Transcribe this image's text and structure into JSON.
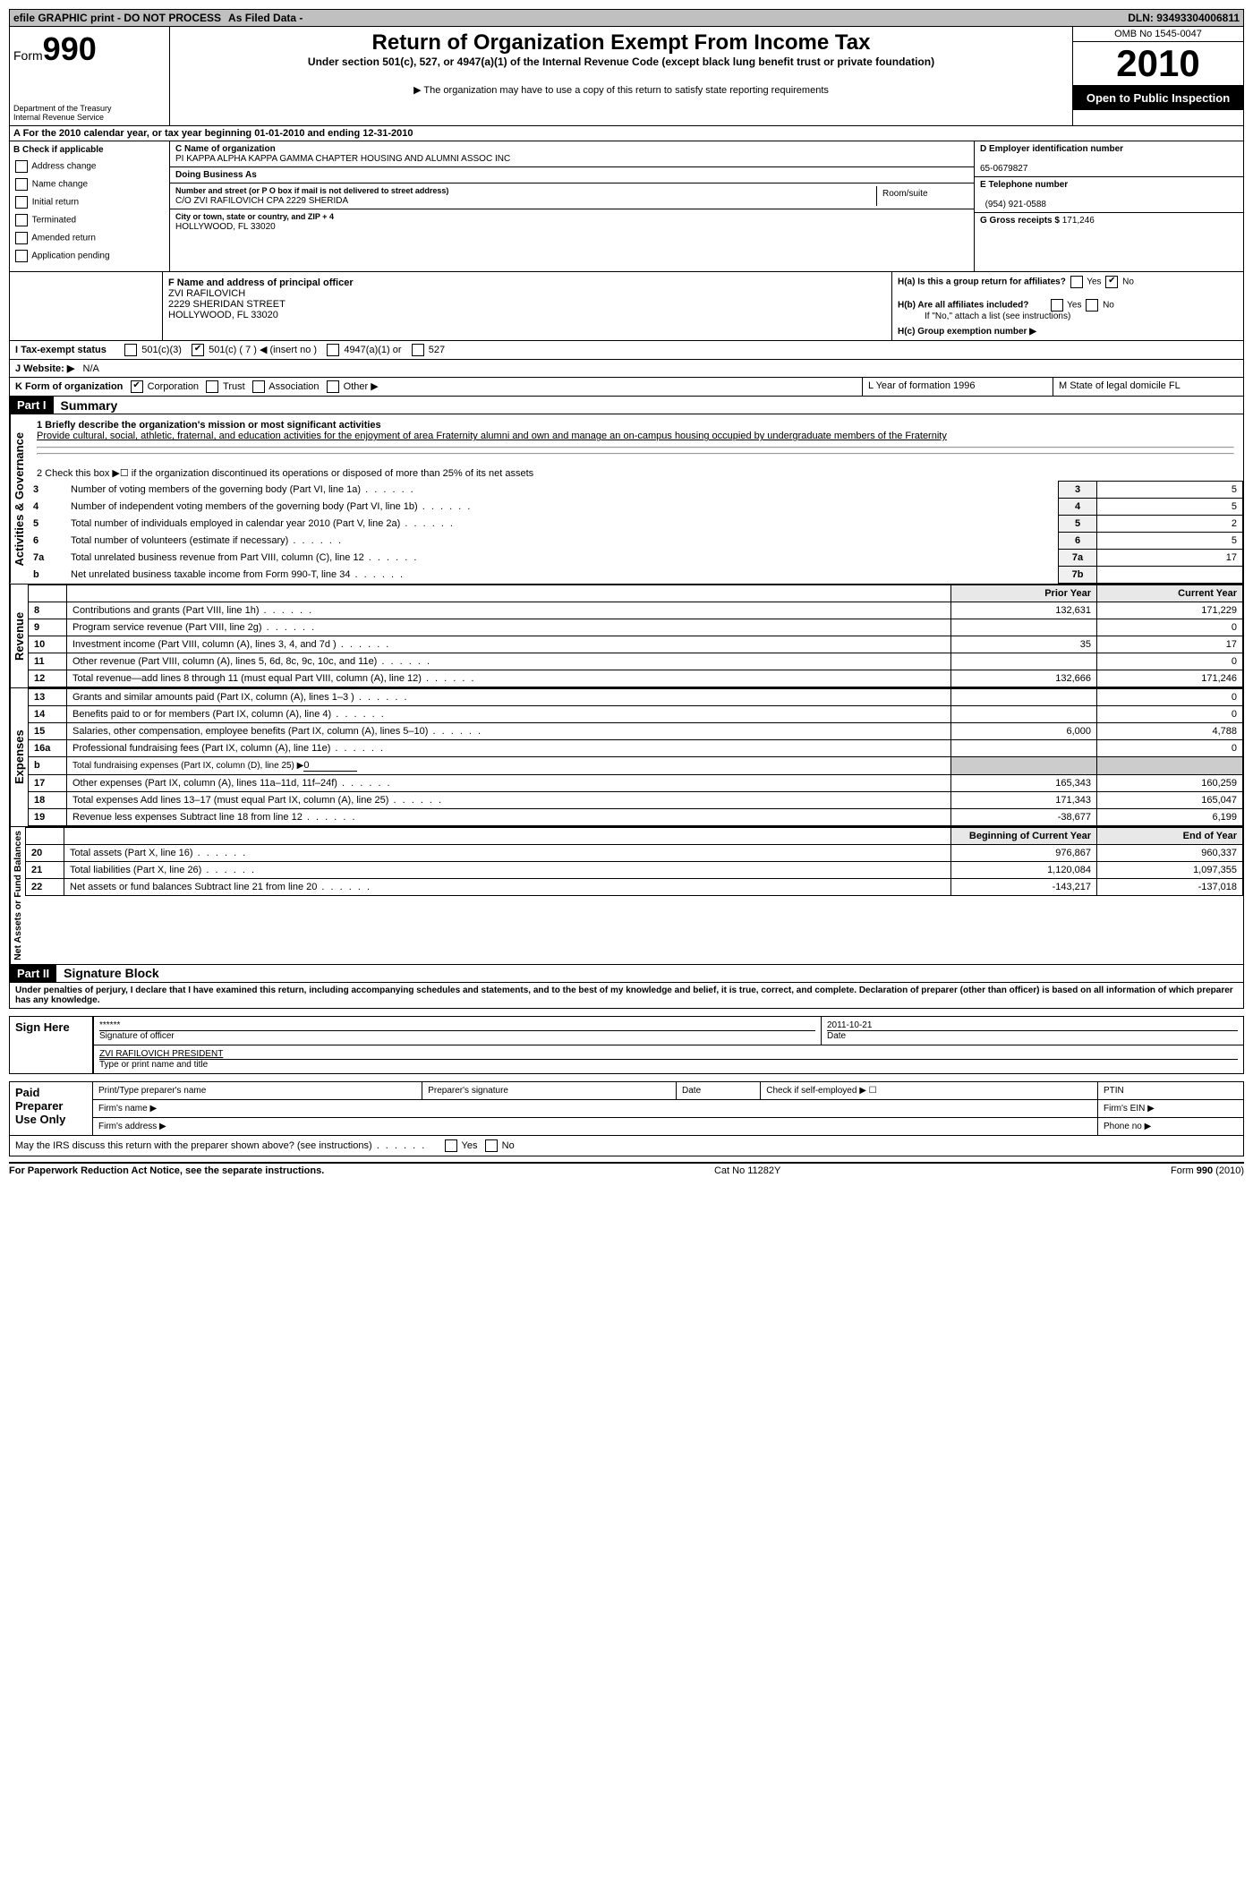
{
  "topbar": {
    "left": "efile GRAPHIC print - DO NOT PROCESS",
    "mid": "As Filed Data -",
    "right": "DLN: 93493304006811"
  },
  "header": {
    "form_label": "Form",
    "form_number": "990",
    "dept1": "Department of the Treasury",
    "dept2": "Internal Revenue Service",
    "title": "Return of Organization Exempt From Income Tax",
    "subtitle": "Under section 501(c), 527, or 4947(a)(1) of the Internal Revenue Code (except black lung benefit trust or private foundation)",
    "note": "▶ The organization may have to use a copy of this return to satisfy state reporting requirements",
    "omb": "OMB No 1545-0047",
    "year": "2010",
    "open": "Open to Public Inspection"
  },
  "sectionA": "A  For the 2010 calendar year, or tax year beginning 01-01-2010    and ending 12-31-2010",
  "B": {
    "label": "B Check if applicable",
    "items": [
      "Address change",
      "Name change",
      "Initial return",
      "Terminated",
      "Amended return",
      "Application pending"
    ]
  },
  "C": {
    "name_label": "C Name of organization",
    "name": "PI KAPPA ALPHA KAPPA GAMMA CHAPTER HOUSING AND ALUMNI ASSOC INC",
    "dba_label": "Doing Business As",
    "street_label": "Number and street (or P O  box if mail is not delivered to street address)",
    "street": "C/O ZVI RAFILOVICH CPA 2229 SHERIDA",
    "room_label": "Room/suite",
    "city_label": "City or town, state or country, and ZIP + 4",
    "city": "HOLLYWOOD, FL  33020"
  },
  "D": {
    "label": "D Employer identification number",
    "value": "65-0679827"
  },
  "E": {
    "label": "E Telephone number",
    "value": "(954) 921-0588"
  },
  "G": {
    "label": "G Gross receipts $",
    "value": "171,246"
  },
  "F": {
    "label": "F   Name and address of principal officer",
    "name": "ZVI RAFILOVICH",
    "street": "2229 SHERIDAN STREET",
    "city": "HOLLYWOOD, FL  33020"
  },
  "H": {
    "a": "H(a)  Is this a group return for affiliates?",
    "a_no_checked": "✔",
    "b": "H(b)  Are all affiliates included?",
    "b_note": "If \"No,\" attach a list  (see instructions)",
    "c": "H(c)   Group exemption number ▶"
  },
  "I": {
    "label": "I    Tax-exempt status",
    "opts": [
      "501(c)(3)",
      "501(c) ( 7 ) ◀ (insert no )",
      "4947(a)(1) or",
      "527"
    ],
    "checked_idx": 1
  },
  "J": {
    "label": "J   Website: ▶",
    "value": "N/A"
  },
  "K": {
    "label": "K Form of organization",
    "opts": [
      "Corporation",
      "Trust",
      "Association",
      "Other ▶"
    ],
    "checked_idx": 0,
    "L": "L Year of formation  1996",
    "M": "M State of legal domicile  FL"
  },
  "part1": {
    "label": "Part I",
    "title": "Summary"
  },
  "mission": {
    "q": "1   Briefly describe the organization's mission or most significant activities",
    "text": "Provide cultural, social, athletic, fraternal, and education activities for the enjoyment of area Fraternity alumni and own and manage an on-campus housing occupied by undergraduate members of the Fraternity"
  },
  "gov_section": "Activities & Governance",
  "line2": "2   Check this box ▶☐ if the organization discontinued its operations or disposed of more than 25% of its net assets",
  "gov_rows": [
    {
      "n": "3",
      "label": "Number of voting members of the governing body (Part VI, line 1a)",
      "box": "3",
      "val": "5"
    },
    {
      "n": "4",
      "label": "Number of independent voting members of the governing body (Part VI, line 1b)",
      "box": "4",
      "val": "5"
    },
    {
      "n": "5",
      "label": "Total number of individuals employed in calendar year 2010 (Part V, line 2a)",
      "box": "5",
      "val": "2"
    },
    {
      "n": "6",
      "label": "Total number of volunteers (estimate if necessary)",
      "box": "6",
      "val": "5"
    },
    {
      "n": "7a",
      "label": "Total unrelated business revenue from Part VIII, column (C), line 12",
      "box": "7a",
      "val": "17"
    },
    {
      "n": "b",
      "label": "Net unrelated business taxable income from Form 990-T, line 34",
      "box": "7b",
      "val": ""
    }
  ],
  "rev_section": "Revenue",
  "rev_headers": {
    "prior": "Prior Year",
    "current": "Current Year"
  },
  "rev_rows": [
    {
      "n": "8",
      "label": "Contributions and grants (Part VIII, line 1h)",
      "p": "132,631",
      "c": "171,229"
    },
    {
      "n": "9",
      "label": "Program service revenue (Part VIII, line 2g)",
      "p": "",
      "c": "0"
    },
    {
      "n": "10",
      "label": "Investment income (Part VIII, column (A), lines 3, 4, and 7d )",
      "p": "35",
      "c": "17"
    },
    {
      "n": "11",
      "label": "Other revenue (Part VIII, column (A), lines 5, 6d, 8c, 9c, 10c, and 11e)",
      "p": "",
      "c": "0"
    },
    {
      "n": "12",
      "label": "Total revenue—add lines 8 through 11 (must equal Part VIII, column (A), line 12)",
      "p": "132,666",
      "c": "171,246"
    }
  ],
  "exp_section": "Expenses",
  "exp_rows": [
    {
      "n": "13",
      "label": "Grants and similar amounts paid (Part IX, column (A), lines 1–3 )",
      "p": "",
      "c": "0"
    },
    {
      "n": "14",
      "label": "Benefits paid to or for members (Part IX, column (A), line 4)",
      "p": "",
      "c": "0"
    },
    {
      "n": "15",
      "label": "Salaries, other compensation, employee benefits (Part IX, column (A), lines 5–10)",
      "p": "6,000",
      "c": "4,788"
    },
    {
      "n": "16a",
      "label": "Professional fundraising fees (Part IX, column (A), line 11e)",
      "p": "",
      "c": "0"
    },
    {
      "n": "b",
      "label": "Total fundraising expenses (Part IX, column (D), line 25) ▶",
      "p": "__SHADE__",
      "c": "__SHADE__",
      "inline": "0"
    },
    {
      "n": "17",
      "label": "Other expenses (Part IX, column (A), lines 11a–11d, 11f–24f)",
      "p": "165,343",
      "c": "160,259"
    },
    {
      "n": "18",
      "label": "Total expenses  Add lines 13–17 (must equal Part IX, column (A), line 25)",
      "p": "171,343",
      "c": "165,047"
    },
    {
      "n": "19",
      "label": "Revenue less expenses  Subtract line 18 from line 12",
      "p": "-38,677",
      "c": "6,199"
    }
  ],
  "net_section": "Net Assets or Fund Balances",
  "net_headers": {
    "prior": "Beginning of Current Year",
    "current": "End of Year"
  },
  "net_rows": [
    {
      "n": "20",
      "label": "Total assets (Part X, line 16)",
      "p": "976,867",
      "c": "960,337"
    },
    {
      "n": "21",
      "label": "Total liabilities (Part X, line 26)",
      "p": "1,120,084",
      "c": "1,097,355"
    },
    {
      "n": "22",
      "label": "Net assets or fund balances  Subtract line 21 from line 20",
      "p": "-143,217",
      "c": "-137,018"
    }
  ],
  "part2": {
    "label": "Part II",
    "title": "Signature Block"
  },
  "perjury": "Under penalties of perjury, I declare that I have examined this return, including accompanying schedules and statements, and to the best of my knowledge and belief, it is true, correct, and complete. Declaration of preparer (other than officer) is based on all information of which preparer has any knowledge.",
  "sign": {
    "here": "Sign Here",
    "stars": "******",
    "sig_label": "Signature of officer",
    "date": "2011-10-21",
    "date_label": "Date",
    "name": "ZVI RAFILOVICH  PRESIDENT",
    "name_label": "Type or print name and title"
  },
  "paid": {
    "label": "Paid Preparer Use Only",
    "r1": [
      "Print/Type preparer's name",
      "Preparer's signature",
      "Date",
      "Check if self-employed ▶ ☐",
      "PTIN"
    ],
    "r2_firm": "Firm's name   ▶",
    "r2_ein": "Firm's EIN   ▶",
    "r3_addr": "Firm's address ▶",
    "r3_phone": "Phone no  ▶"
  },
  "irs_discuss": "May the IRS discuss this return with the preparer shown above? (see instructions)",
  "footer": {
    "left": "For Paperwork Reduction Act Notice, see the separate instructions.",
    "mid": "Cat No 11282Y",
    "right": "Form 990 (2010)"
  },
  "yes": "Yes",
  "no": "No"
}
